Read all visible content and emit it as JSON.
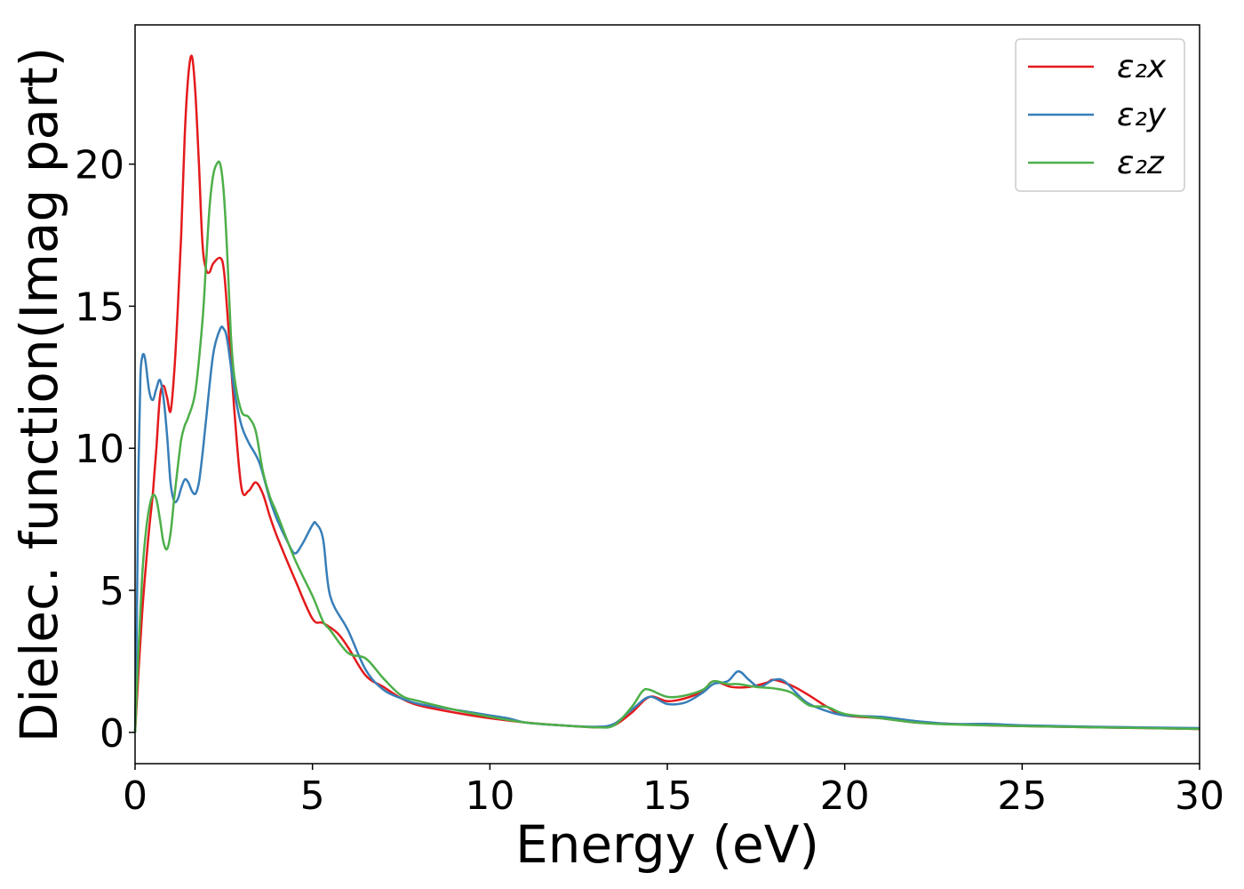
{
  "chart_data": {
    "type": "line",
    "title": "",
    "xlabel": "Energy (eV)",
    "ylabel": "Dielec. function(Imag part)",
    "xlim": [
      0,
      30
    ],
    "ylim": [
      -1.1,
      24.9
    ],
    "xticks": [
      0,
      5,
      10,
      15,
      20,
      25,
      30
    ],
    "yticks": [
      0,
      5,
      10,
      15,
      20
    ],
    "grid": false,
    "legend_position": "top-right",
    "series": [
      {
        "name": "ε₂x",
        "color": "#e41a1c",
        "x": [
          0,
          0.1,
          0.2,
          0.3,
          0.4,
          0.5,
          0.6,
          0.7,
          0.8,
          0.9,
          1.0,
          1.1,
          1.2,
          1.3,
          1.4,
          1.5,
          1.6,
          1.7,
          1.8,
          1.9,
          2.0,
          2.1,
          2.2,
          2.4,
          2.5,
          2.6,
          2.8,
          3.0,
          3.2,
          3.4,
          3.6,
          3.8,
          4.0,
          4.5,
          5.0,
          5.3,
          5.7,
          6.0,
          6.5,
          7.0,
          7.5,
          8.0,
          9.0,
          10.0,
          11.0,
          12.0,
          13.0,
          13.5,
          14.0,
          14.5,
          15.0,
          15.5,
          16.0,
          16.3,
          16.8,
          17.3,
          17.8,
          18.0,
          18.5,
          19.0,
          19.5,
          20.0,
          21.0,
          22.0,
          23.0,
          24.0,
          25.0,
          27.0,
          30.0
        ],
        "values": [
          0,
          2.2,
          4.2,
          5.8,
          7.2,
          8.4,
          10.0,
          11.8,
          12.2,
          11.8,
          11.3,
          12.6,
          14.8,
          17.5,
          21.0,
          23.1,
          23.8,
          22.5,
          20.0,
          17.2,
          16.3,
          16.2,
          16.5,
          16.7,
          16.3,
          14.8,
          11.3,
          8.6,
          8.5,
          8.8,
          8.4,
          7.6,
          6.9,
          5.4,
          4.0,
          3.85,
          3.5,
          3.0,
          2.0,
          1.6,
          1.2,
          0.95,
          0.7,
          0.5,
          0.35,
          0.25,
          0.18,
          0.25,
          0.7,
          1.25,
          1.1,
          1.2,
          1.45,
          1.8,
          1.6,
          1.6,
          1.75,
          1.85,
          1.65,
          1.3,
          0.9,
          0.6,
          0.5,
          0.35,
          0.3,
          0.25,
          0.22,
          0.18,
          0.12
        ]
      },
      {
        "name": "ε₂y",
        "color": "#377eb8",
        "x": [
          0,
          0.05,
          0.1,
          0.15,
          0.2,
          0.25,
          0.3,
          0.4,
          0.5,
          0.6,
          0.7,
          0.8,
          0.9,
          1.0,
          1.1,
          1.2,
          1.3,
          1.4,
          1.5,
          1.6,
          1.7,
          1.8,
          1.9,
          2.0,
          2.2,
          2.4,
          2.5,
          2.6,
          2.8,
          3.0,
          3.2,
          3.5,
          3.8,
          4.0,
          4.3,
          4.5,
          4.7,
          5.0,
          5.1,
          5.3,
          5.5,
          6.0,
          6.5,
          7.0,
          7.5,
          8.0,
          9.0,
          10.0,
          10.5,
          11.0,
          12.0,
          13.0,
          13.5,
          14.0,
          14.5,
          15.0,
          15.5,
          16.0,
          16.3,
          16.7,
          17.0,
          17.3,
          17.6,
          18.0,
          18.3,
          18.7,
          19.0,
          19.5,
          20.0,
          21.0,
          22.0,
          23.0,
          24.0,
          25.0,
          27.0,
          30.0
        ],
        "values": [
          0,
          4.0,
          9.5,
          12.5,
          13.2,
          13.3,
          13.0,
          12.0,
          11.7,
          12.1,
          12.4,
          11.8,
          10.5,
          8.8,
          8.15,
          8.2,
          8.6,
          8.9,
          8.8,
          8.5,
          8.4,
          8.8,
          9.8,
          11.0,
          13.3,
          14.2,
          14.2,
          13.8,
          12.0,
          10.8,
          10.2,
          9.5,
          8.2,
          7.5,
          6.7,
          6.3,
          6.6,
          7.3,
          7.35,
          6.8,
          4.8,
          3.6,
          2.2,
          1.5,
          1.2,
          1.0,
          0.8,
          0.6,
          0.5,
          0.35,
          0.25,
          0.2,
          0.3,
          0.8,
          1.25,
          1.0,
          1.05,
          1.4,
          1.7,
          1.8,
          2.15,
          1.85,
          1.6,
          1.85,
          1.8,
          1.3,
          1.0,
          0.75,
          0.6,
          0.55,
          0.4,
          0.3,
          0.3,
          0.25,
          0.2,
          0.15
        ]
      },
      {
        "name": "ε₂z",
        "color": "#4daf4a",
        "x": [
          0,
          0.1,
          0.2,
          0.3,
          0.4,
          0.5,
          0.6,
          0.7,
          0.8,
          0.9,
          1.0,
          1.1,
          1.2,
          1.3,
          1.4,
          1.5,
          1.7,
          1.9,
          2.0,
          2.1,
          2.2,
          2.3,
          2.4,
          2.5,
          2.6,
          2.7,
          2.8,
          3.0,
          3.2,
          3.4,
          3.6,
          3.8,
          4.0,
          4.5,
          5.0,
          5.3,
          5.5,
          6.0,
          6.5,
          7.0,
          7.5,
          8.0,
          9.0,
          10.0,
          11.0,
          12.0,
          13.0,
          13.5,
          14.0,
          14.3,
          14.5,
          15.0,
          15.5,
          16.0,
          16.3,
          16.7,
          17.0,
          17.5,
          18.0,
          18.5,
          19.0,
          19.5,
          20.0,
          21.0,
          22.0,
          23.0,
          24.0,
          25.0,
          27.0,
          30.0
        ],
        "values": [
          0,
          3.0,
          5.5,
          7.0,
          7.9,
          8.35,
          8.2,
          7.5,
          6.7,
          6.45,
          7.0,
          8.2,
          9.3,
          10.3,
          10.8,
          11.1,
          12.0,
          14.5,
          16.5,
          18.5,
          19.6,
          20.0,
          20.0,
          19.0,
          16.8,
          14.0,
          12.5,
          11.3,
          11.1,
          10.6,
          9.2,
          8.3,
          7.7,
          6.1,
          4.8,
          3.9,
          3.6,
          2.8,
          2.6,
          1.9,
          1.3,
          1.1,
          0.8,
          0.55,
          0.35,
          0.25,
          0.18,
          0.25,
          0.9,
          1.45,
          1.5,
          1.25,
          1.3,
          1.5,
          1.8,
          1.7,
          1.7,
          1.6,
          1.55,
          1.4,
          0.95,
          0.9,
          0.65,
          0.5,
          0.35,
          0.28,
          0.25,
          0.22,
          0.18,
          0.12
        ]
      }
    ]
  }
}
